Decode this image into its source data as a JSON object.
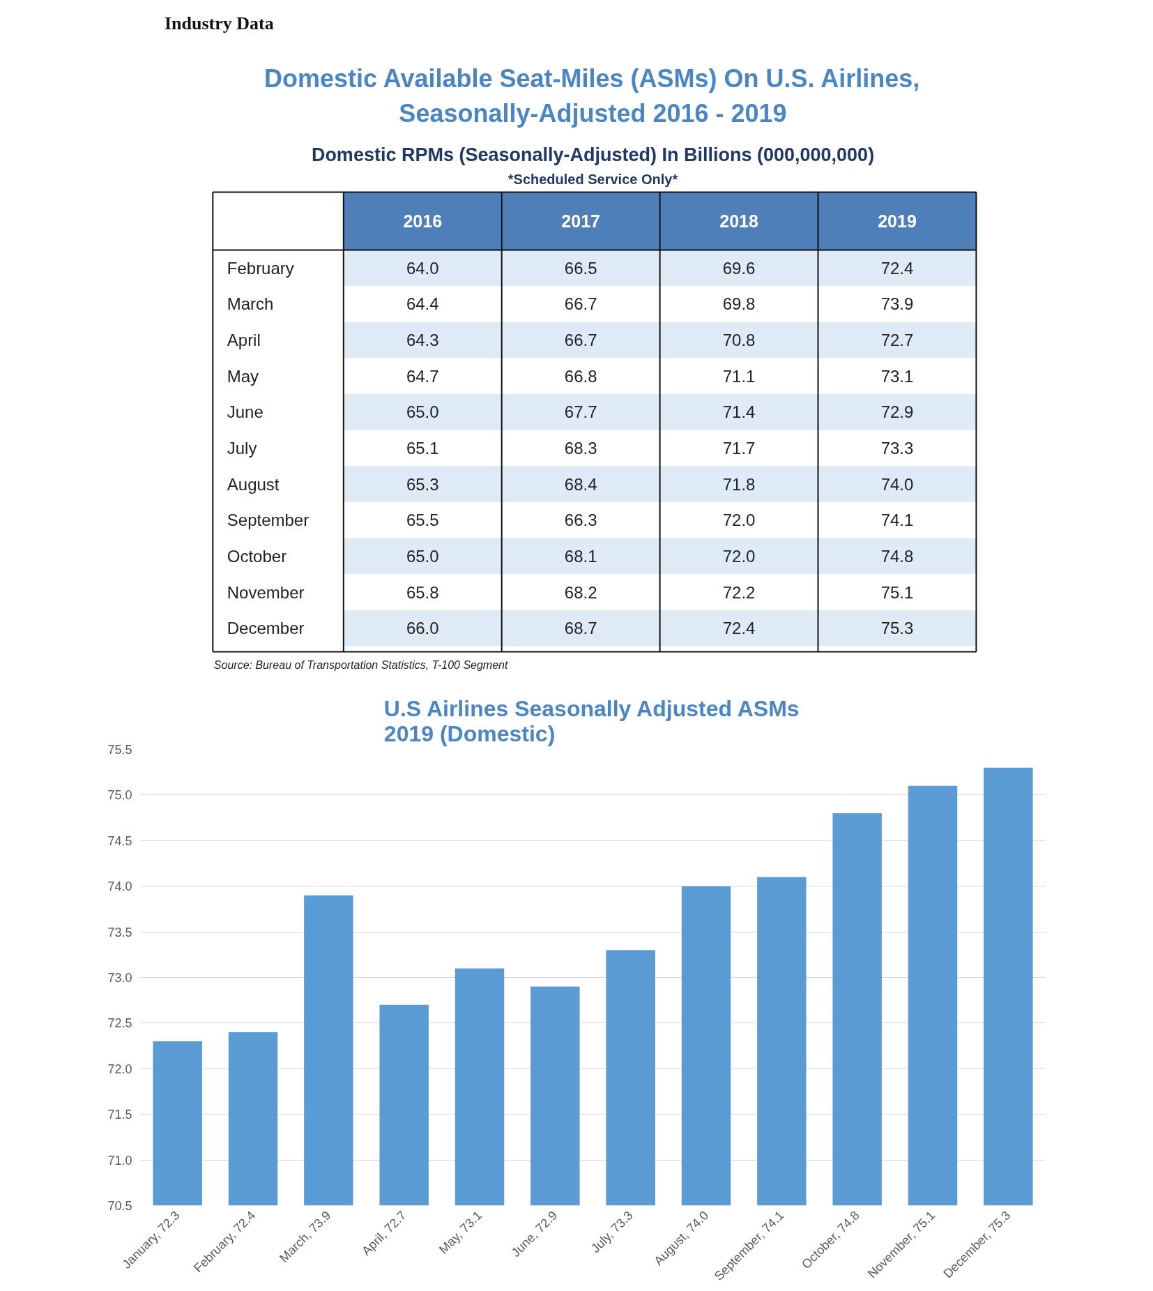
{
  "chart_data": [
    {
      "type": "heatmap",
      "title": "Domestic Available Seat-Miles (ASMs) On U.S. Airlines,\nSeasonally-Adjusted 2016 - 2019",
      "subtitle": "Domestic RPMs (Seasonally-Adjusted) In Billions (000,000,000)",
      "annotations": [
        "Industry Data",
        "*Scheduled Service Only*",
        "Source: Bureau of Transportation Statistics, T-100 Segment"
      ],
      "categories": [
        "2016",
        "2017",
        "2018",
        "2019"
      ],
      "y_categories": [
        "February",
        "March",
        "April",
        "May",
        "June",
        "July",
        "August",
        "September",
        "October",
        "November",
        "December"
      ],
      "cells": [
        [
          64.0,
          66.5,
          69.6,
          72.4
        ],
        [
          64.4,
          66.7,
          69.8,
          73.9
        ],
        [
          64.3,
          66.7,
          70.8,
          72.7
        ],
        [
          64.7,
          66.8,
          71.1,
          73.1
        ],
        [
          65.0,
          67.7,
          71.4,
          72.9
        ],
        [
          65.1,
          68.3,
          71.7,
          73.3
        ],
        [
          65.3,
          68.4,
          71.8,
          74.0
        ],
        [
          65.5,
          66.3,
          72.0,
          74.1
        ],
        [
          65.0,
          68.1,
          72.0,
          74.8
        ],
        [
          65.8,
          68.2,
          72.2,
          75.1
        ],
        [
          66.0,
          68.7,
          72.4,
          75.3
        ]
      ],
      "cell_labels": [
        [
          "64.0",
          "66.5",
          "69.6",
          "72.4"
        ],
        [
          "64.4",
          "66.7",
          "69.8",
          "73.9"
        ],
        [
          "64.3",
          "66.7",
          "70.8",
          "72.7"
        ],
        [
          "64.7",
          "66.8",
          "71.1",
          "73.1"
        ],
        [
          "65.0",
          "67.7",
          "71.4",
          "72.9"
        ],
        [
          "65.1",
          "68.3",
          "71.7",
          "73.3"
        ],
        [
          "65.3",
          "68.4",
          "71.8",
          "74.0"
        ],
        [
          "65.5",
          "66.3",
          "72.0",
          "74.1"
        ],
        [
          "65.0",
          "68.1",
          "72.0",
          "74.8"
        ],
        [
          "65.8",
          "68.2",
          "72.2",
          "75.1"
        ],
        [
          "66.0",
          "68.7",
          "72.4",
          "75.3"
        ]
      ]
    },
    {
      "type": "bar",
      "title": "U.S Airlines Seasonally Adjusted ASMs\n2019 (Domestic)",
      "categories": [
        "January, 72.3",
        "February, 72.4",
        "March, 73.9",
        "April, 72.7",
        "May, 73.1",
        "June, 72.9",
        "July, 73.3",
        "August, 74.0",
        "September, 74.1",
        "October, 74.8",
        "November, 75.1",
        "December, 75.3"
      ],
      "values": [
        72.3,
        72.4,
        73.9,
        72.7,
        73.1,
        72.9,
        73.3,
        74.0,
        74.1,
        74.8,
        75.1,
        75.3
      ],
      "color": "#5b9bd5",
      "ylim": [
        70.5,
        75.5
      ],
      "yticks": [
        {
          "value": 70.5,
          "label": "70.5"
        },
        {
          "value": 71,
          "label": "71.0"
        },
        {
          "value": 71.5,
          "label": "71.5"
        },
        {
          "value": 72,
          "label": "72.0"
        },
        {
          "value": 72.5,
          "label": "72.5"
        },
        {
          "value": 73,
          "label": "73.0"
        },
        {
          "value": 73.5,
          "label": "73.5"
        },
        {
          "value": 74,
          "label": "74.0"
        },
        {
          "value": 74.5,
          "label": "74.5"
        },
        {
          "value": 75,
          "label": "75.0"
        },
        {
          "value": 75.5,
          "label": "75.5"
        }
      ],
      "grid": "y"
    }
  ]
}
